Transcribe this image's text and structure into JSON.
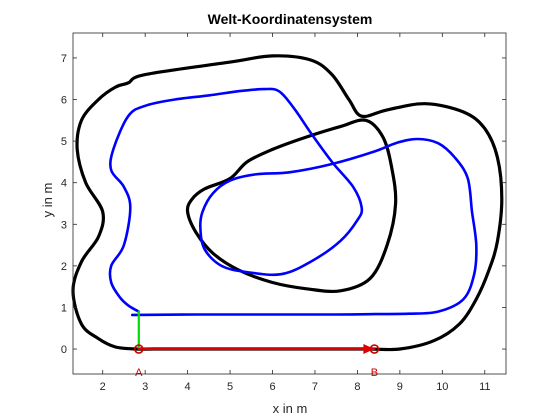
{
  "chart_data": {
    "type": "line",
    "title": "Welt-Koordinatensystem",
    "xlabel": "x in m",
    "ylabel": "y in m",
    "xlim": [
      1.3,
      11.5
    ],
    "ylim": [
      -0.6,
      7.6
    ],
    "xticks": [
      2,
      3,
      4,
      5,
      6,
      7,
      8,
      9,
      10,
      11
    ],
    "yticks": [
      0,
      1,
      2,
      3,
      4,
      5,
      6,
      7
    ],
    "grid": false,
    "series": [
      {
        "role": "outer-track-boundary",
        "color": "#000000",
        "closed": true,
        "x": [
          2.6,
          3.0,
          5.0,
          6.0,
          6.9,
          7.4,
          7.8,
          8.1,
          8.7,
          9.6,
          10.5,
          11.0,
          11.3,
          11.4,
          11.3,
          11.1,
          10.8,
          10.4,
          9.8,
          9.0,
          8.3,
          7.7,
          7.0,
          6.0,
          5.0,
          4.0,
          3.2,
          2.8,
          2.3,
          1.9,
          1.5,
          1.3,
          1.5,
          1.9,
          2.0,
          1.6,
          1.4,
          1.5,
          1.9,
          2.3
        ],
        "y": [
          6.4,
          6.6,
          6.9,
          7.05,
          6.95,
          6.6,
          6.0,
          5.6,
          5.75,
          5.9,
          5.7,
          5.3,
          4.6,
          3.6,
          2.6,
          1.9,
          1.2,
          0.6,
          0.2,
          0.0,
          0.0,
          0.0,
          0.0,
          0.0,
          0.0,
          0.0,
          0.0,
          0.0,
          0.05,
          0.25,
          0.6,
          1.4,
          2.1,
          2.7,
          3.3,
          4.0,
          4.8,
          5.5,
          6.0,
          6.3
        ]
      },
      {
        "role": "inner-loop-boundary",
        "color": "#000000",
        "closed": true,
        "x": [
          5.0,
          5.4,
          6.0,
          6.8,
          7.6,
          8.2,
          8.6,
          8.8,
          8.9,
          8.7,
          8.3,
          7.6,
          6.8,
          6.0,
          5.2,
          4.6,
          4.2,
          4.0,
          4.1,
          4.4
        ],
        "y": [
          4.1,
          4.5,
          4.8,
          5.1,
          5.35,
          5.5,
          5.1,
          4.4,
          3.5,
          2.5,
          1.7,
          1.4,
          1.45,
          1.6,
          1.9,
          2.3,
          2.8,
          3.3,
          3.6,
          3.85
        ]
      },
      {
        "role": "driven-path",
        "color": "#0000ff",
        "closed": false,
        "x": [
          2.8,
          2.8,
          4.2,
          6.0,
          7.5,
          8.4,
          9.2,
          9.9,
          10.5,
          10.75,
          10.8,
          10.7,
          10.6,
          10.3,
          9.9,
          9.4,
          8.9,
          8.4,
          7.4,
          6.4,
          5.6,
          5.0,
          4.6,
          4.35,
          4.3,
          4.4,
          4.8,
          5.4,
          6.2,
          6.9,
          7.6,
          8.0,
          8.1,
          7.9,
          7.4,
          6.9,
          6.5,
          6.15,
          5.8,
          5.2,
          4.5,
          3.7,
          3.0,
          2.6,
          2.25,
          2.2,
          2.5,
          2.65,
          2.5,
          2.2,
          2.2,
          2.4,
          2.6,
          2.85
        ],
        "y": [
          0.82,
          0.82,
          0.83,
          0.83,
          0.83,
          0.84,
          0.85,
          0.9,
          1.2,
          1.8,
          2.5,
          3.3,
          4.1,
          4.6,
          4.95,
          5.05,
          4.95,
          4.75,
          4.45,
          4.25,
          4.2,
          4.05,
          3.75,
          3.3,
          2.9,
          2.4,
          2.0,
          1.85,
          1.8,
          2.1,
          2.6,
          3.1,
          3.4,
          3.9,
          4.5,
          5.2,
          5.8,
          6.2,
          6.25,
          6.2,
          6.1,
          6.0,
          5.85,
          5.6,
          4.8,
          4.3,
          3.9,
          3.4,
          2.5,
          2.0,
          1.6,
          1.25,
          1.05,
          0.9
        ]
      },
      {
        "role": "frame-y-axis",
        "color": "#00dd00",
        "closed": false,
        "x": [
          2.85,
          2.85
        ],
        "y": [
          0.0,
          0.9
        ]
      },
      {
        "role": "frame-x-axis",
        "color": "#dd0000",
        "closed": false,
        "x": [
          2.85,
          8.4
        ],
        "y": [
          0.0,
          0.0
        ]
      }
    ],
    "points": [
      {
        "label": "A",
        "x": 2.85,
        "y": 0.0
      },
      {
        "label": "B",
        "x": 8.4,
        "y": 0.0
      }
    ]
  }
}
